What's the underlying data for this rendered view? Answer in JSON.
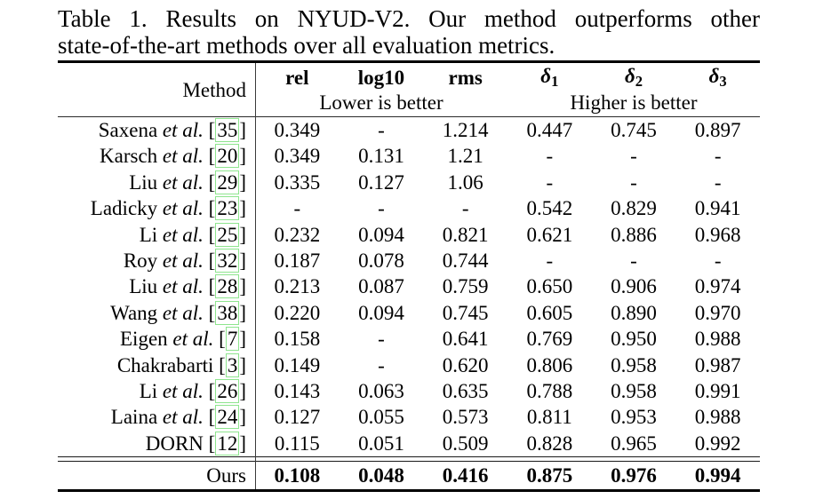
{
  "caption": {
    "line1": "Table 1. Results on NYUD-V2. Our method outperforms other",
    "line2": "state-of-the-art methods over all evaluation metrics."
  },
  "colors": {
    "citation_link_border": "#8ee58e",
    "text": "#000000",
    "background": "#ffffff"
  },
  "table": {
    "method_header": "Method",
    "metric_cols": [
      "rel",
      "log10",
      "rms"
    ],
    "delta_cols": [
      {
        "base": "δ",
        "sub": "1"
      },
      {
        "base": "δ",
        "sub": "2"
      },
      {
        "base": "δ",
        "sub": "3"
      }
    ],
    "group_lower": "Lower is better",
    "group_higher": "Higher is better",
    "cite_open": "[",
    "cite_close": "]",
    "rows": [
      {
        "name": "Saxena",
        "etal": "et al.",
        "cite": "35",
        "values": [
          "0.349",
          "-",
          "1.214",
          "0.447",
          "0.745",
          "0.897"
        ]
      },
      {
        "name": "Karsch",
        "etal": "et al.",
        "cite": "20",
        "values": [
          "0.349",
          "0.131",
          "1.21",
          "-",
          "-",
          "-"
        ]
      },
      {
        "name": "Liu",
        "etal": "et al.",
        "cite": "29",
        "values": [
          "0.335",
          "0.127",
          "1.06",
          "-",
          "-",
          "-"
        ]
      },
      {
        "name": "Ladicky",
        "etal": "et al.",
        "cite": "23",
        "values": [
          "-",
          "-",
          "-",
          "0.542",
          "0.829",
          "0.941"
        ]
      },
      {
        "name": "Li",
        "etal": "et al.",
        "cite": "25",
        "values": [
          "0.232",
          "0.094",
          "0.821",
          "0.621",
          "0.886",
          "0.968"
        ]
      },
      {
        "name": "Roy",
        "etal": "et al.",
        "cite": "32",
        "values": [
          "0.187",
          "0.078",
          "0.744",
          "-",
          "-",
          "-"
        ]
      },
      {
        "name": "Liu",
        "etal": "et al.",
        "cite": "28",
        "values": [
          "0.213",
          "0.087",
          "0.759",
          "0.650",
          "0.906",
          "0.974"
        ]
      },
      {
        "name": "Wang",
        "etal": "et al.",
        "cite": "38",
        "values": [
          "0.220",
          "0.094",
          "0.745",
          "0.605",
          "0.890",
          "0.970"
        ]
      },
      {
        "name": "Eigen",
        "etal": "et al.",
        "cite": "7",
        "values": [
          "0.158",
          "-",
          "0.641",
          "0.769",
          "0.950",
          "0.988"
        ]
      },
      {
        "name": "Chakrabarti",
        "etal": "",
        "cite": "3",
        "values": [
          "0.149",
          "-",
          "0.620",
          "0.806",
          "0.958",
          "0.987"
        ]
      },
      {
        "name": "Li",
        "etal": "et al.",
        "cite": "26",
        "values": [
          "0.143",
          "0.063",
          "0.635",
          "0.788",
          "0.958",
          "0.991"
        ]
      },
      {
        "name": "Laina",
        "etal": "et al.",
        "cite": "24",
        "values": [
          "0.127",
          "0.055",
          "0.573",
          "0.811",
          "0.953",
          "0.988"
        ]
      },
      {
        "name": "DORN",
        "etal": "",
        "cite": "12",
        "values": [
          "0.115",
          "0.051",
          "0.509",
          "0.828",
          "0.965",
          "0.992"
        ]
      }
    ],
    "ours": {
      "label": "Ours",
      "values": [
        "0.108",
        "0.048",
        "0.416",
        "0.875",
        "0.976",
        "0.994"
      ]
    }
  }
}
